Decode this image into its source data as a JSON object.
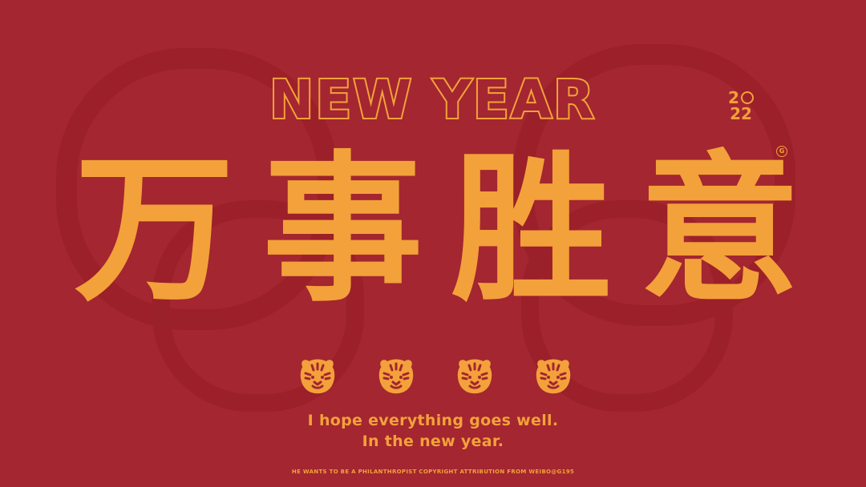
{
  "poster": {
    "heading": "NEW YEAR",
    "year_top": "2",
    "year_bottom": "22",
    "registered_mark": "G",
    "headline_chars": [
      "万",
      "事",
      "胜",
      "意"
    ],
    "tagline_line1": "I hope everything goes well.",
    "tagline_line2": "In the new year.",
    "footer": "HE WANTS TO BE A PHILANTHROPIST COPYRIGHT ATTRIBUTION FROM WEIBO@G195"
  },
  "colors": {
    "background": "#a32630",
    "accent": "#f3a13a"
  },
  "icons": [
    "tiger-face-icon",
    "tiger-face-icon",
    "tiger-face-icon",
    "tiger-face-icon"
  ]
}
